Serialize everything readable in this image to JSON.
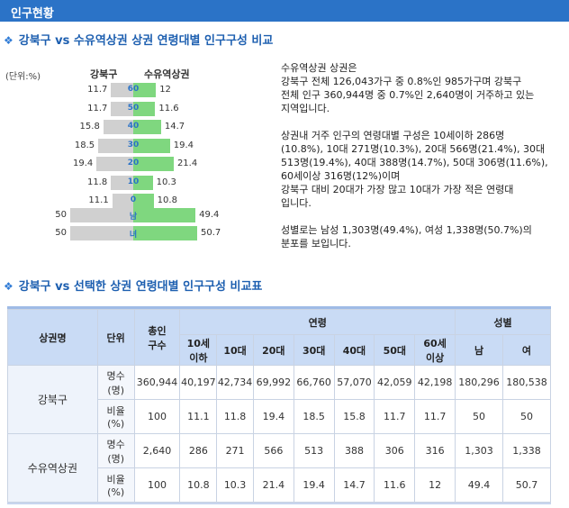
{
  "topbar": {
    "title": "인구현황"
  },
  "section1": {
    "title": "강북구 vs 수유역상권 상권 연령대별 인구구성 비교"
  },
  "section2": {
    "title": "강북구 vs 선택한 상권 연령대별 인구구성 비교표"
  },
  "pyramid": {
    "unit": "(단위:%)",
    "left_name": "강북구",
    "right_name": "수유역상권",
    "rows": [
      {
        "age": "60",
        "left": "11.7",
        "right": "12",
        "lv": 11.7,
        "rv": 12
      },
      {
        "age": "50",
        "left": "11.7",
        "right": "11.6",
        "lv": 11.7,
        "rv": 11.6
      },
      {
        "age": "40",
        "left": "15.8",
        "right": "14.7",
        "lv": 15.8,
        "rv": 14.7
      },
      {
        "age": "30",
        "left": "18.5",
        "right": "19.4",
        "lv": 18.5,
        "rv": 19.4
      },
      {
        "age": "20",
        "left": "19.4",
        "right": "21.4",
        "lv": 19.4,
        "rv": 21.4
      },
      {
        "age": "10",
        "left": "11.8",
        "right": "10.3",
        "lv": 11.8,
        "rv": 10.3
      },
      {
        "age": "0",
        "left": "11.1",
        "right": "10.8",
        "lv": 11.1,
        "rv": 10.8
      }
    ],
    "gender_rows": [
      {
        "label": "남",
        "left": "50",
        "right": "49.4",
        "lv": 50,
        "rv": 49.4
      },
      {
        "label": "녀",
        "left": "50",
        "right": "50.7",
        "lv": 50,
        "rv": 50.7
      }
    ]
  },
  "description": {
    "p1": [
      "수유역상권 상권은",
      "강북구 전체 126,043가구 중 0.8%인 985가구며 강북구",
      "전체 인구 360,944명 중 0.7%인 2,640명이 거주하고 있는",
      "지역입니다."
    ],
    "p2": [
      "상권내 거주 인구의 연령대별 구성은 10세이하 286명",
      "(10.8%), 10대 271명(10.3%), 20대 566명(21.4%), 30대",
      "513명(19.4%), 40대 388명(14.7%), 50대 306명(11.6%),",
      "60세이상 316명(12%)이며",
      "강북구 대비 20대가 가장 많고 10대가 가장 적은 연령대",
      "입니다."
    ],
    "p3": [
      "성별로는 남성 1,303명(49.4%), 여성 1,338명(50.7%)의",
      "분포를 보입니다."
    ]
  },
  "table": {
    "headers": {
      "area": "상권명",
      "unit": "단위",
      "total": [
        "총인",
        "구수"
      ],
      "age_group": "연령",
      "gender_group": "성별",
      "ages": [
        [
          "10세",
          "이하"
        ],
        [
          "10대"
        ],
        [
          "20대"
        ],
        [
          "30대"
        ],
        [
          "40대"
        ],
        [
          "50대"
        ],
        [
          "60세",
          "이상"
        ]
      ],
      "genders": [
        "남",
        "여"
      ]
    },
    "groups": [
      {
        "name": "강북구",
        "rows": [
          {
            "unit": [
              "명수",
              "(명)"
            ],
            "values": [
              "360,944",
              "40,197",
              "42,734",
              "69,992",
              "66,760",
              "57,070",
              "42,059",
              "42,198",
              "180,296",
              "180,538"
            ]
          },
          {
            "unit": [
              "비율",
              "(%)"
            ],
            "values": [
              "100",
              "11.1",
              "11.8",
              "19.4",
              "18.5",
              "15.8",
              "11.7",
              "11.7",
              "50",
              "50"
            ]
          }
        ]
      },
      {
        "name": "수유역상권",
        "rows": [
          {
            "unit": [
              "명수",
              "(명)"
            ],
            "values": [
              "2,640",
              "286",
              "271",
              "566",
              "513",
              "388",
              "306",
              "316",
              "1,303",
              "1,338"
            ]
          },
          {
            "unit": [
              "비율",
              "(%)"
            ],
            "values": [
              "100",
              "10.8",
              "10.3",
              "21.4",
              "19.4",
              "14.7",
              "11.6",
              "12",
              "49.4",
              "50.7"
            ]
          }
        ]
      }
    ]
  }
}
